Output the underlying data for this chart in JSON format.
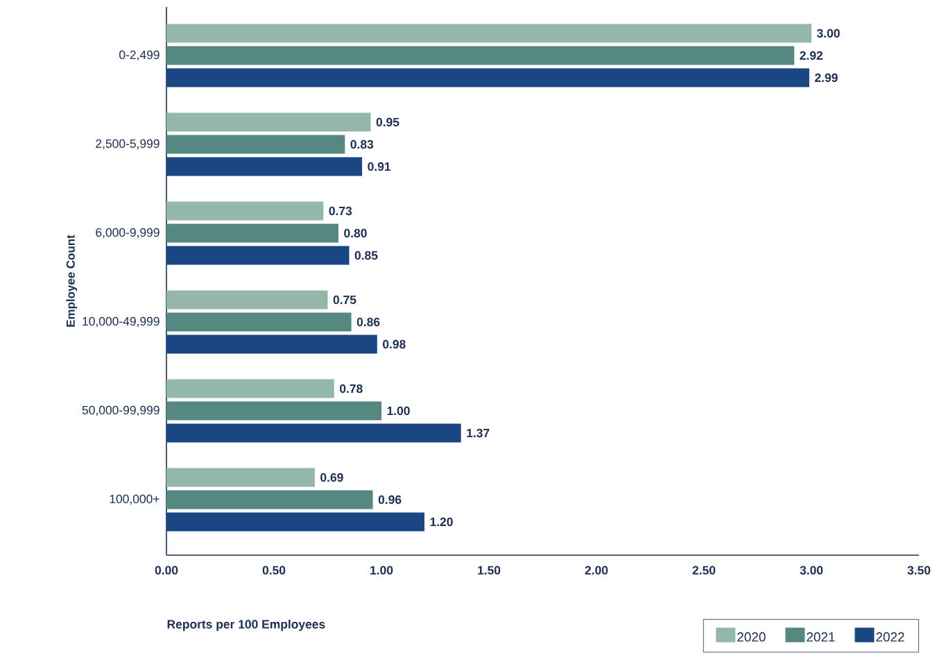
{
  "chart_data": {
    "type": "bar",
    "orientation": "horizontal",
    "xlabel": "Reports per 100 Employees",
    "ylabel": "Employee Count",
    "categories": [
      "0-2,499",
      "2,500-5,999",
      "6,000-9,999",
      "10,000-49,999",
      "50,000-99,999",
      "100,000+"
    ],
    "series": [
      {
        "name": "2020",
        "color": "#93b8a9",
        "values": [
          3.0,
          0.95,
          0.73,
          0.75,
          0.78,
          0.69
        ],
        "value_labels": [
          "3.00",
          "0.95",
          "0.73",
          "0.75",
          "0.78",
          "0.69"
        ]
      },
      {
        "name": "2021",
        "color": "#558880",
        "values": [
          2.92,
          0.83,
          0.8,
          0.86,
          1.0,
          0.96
        ],
        "value_labels": [
          "2.92",
          "0.83",
          "0.80",
          "0.86",
          "1.00",
          "0.96"
        ]
      },
      {
        "name": "2022",
        "color": "#1a4784",
        "values": [
          2.99,
          0.91,
          0.85,
          0.98,
          1.37,
          1.2
        ],
        "value_labels": [
          "2.99",
          "0.91",
          "0.85",
          "0.98",
          "1.37",
          "1.20"
        ]
      }
    ],
    "xlim": [
      0,
      3.5
    ],
    "xticks": [
      {
        "value": 0,
        "label": "0.00"
      },
      {
        "value": 0.5,
        "label": "0.50"
      },
      {
        "value": 1,
        "label": "1.00"
      },
      {
        "value": 1.5,
        "label": "1.50"
      },
      {
        "value": 2,
        "label": "2.00"
      },
      {
        "value": 2.5,
        "label": "2.50"
      },
      {
        "value": 3,
        "label": "3.00"
      },
      {
        "value": 3.5,
        "label": "3.50"
      }
    ],
    "legend": "bottom right"
  }
}
